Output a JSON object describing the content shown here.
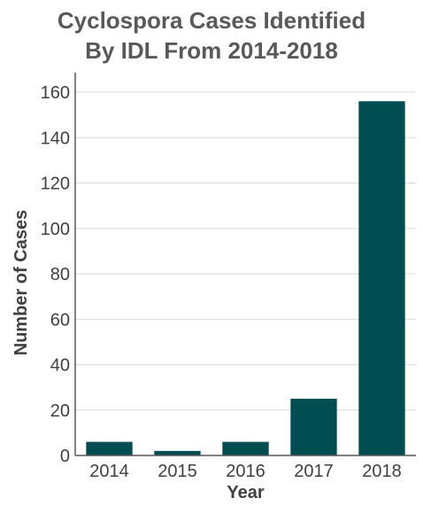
{
  "chart_data": {
    "type": "bar",
    "title_lines": [
      "Cyclospora Cases Identified",
      "By IDL From 2014-2018"
    ],
    "categories": [
      "2014",
      "2015",
      "2016",
      "2017",
      "2018"
    ],
    "values": [
      6,
      2,
      6,
      25,
      156
    ],
    "xlabel": "Year",
    "ylabel": "Number of Cases",
    "ylim": [
      0,
      160
    ],
    "yticks": [
      0,
      20,
      40,
      60,
      80,
      100,
      120,
      140,
      160
    ],
    "grid": true,
    "legend": "none",
    "bar_color": "#004d52",
    "grid_color": "#d9d9d9",
    "axis_color": "#595959"
  }
}
